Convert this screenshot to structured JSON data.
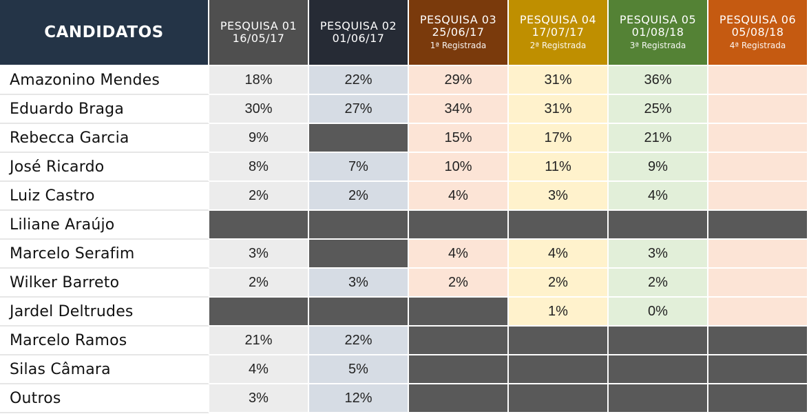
{
  "chart_data": {
    "type": "table",
    "title": "",
    "header": {
      "candidates_label": "CANDIDATOS",
      "polls": [
        {
          "name": "PESQUISA 01",
          "date": "16/05/17",
          "note": ""
        },
        {
          "name": "PESQUISA 02",
          "date": "01/06/17",
          "note": ""
        },
        {
          "name": "PESQUISA 03",
          "date": "25/06/17",
          "note": "1ª Registrada"
        },
        {
          "name": "PESQUISA 04",
          "date": "17/07/17",
          "note": "2ª Registrada"
        },
        {
          "name": "PESQUISA 05",
          "date": "01/08/18",
          "note": "3ª Registrada"
        },
        {
          "name": "PESQUISA 06",
          "date": "05/08/18",
          "note": "4ª Registrada"
        }
      ]
    },
    "rows": [
      {
        "candidate": "Amazonino Mendes",
        "values": [
          "18%",
          "22%",
          "29%",
          "31%",
          "36%",
          ""
        ]
      },
      {
        "candidate": "Eduardo Braga",
        "values": [
          "30%",
          "27%",
          "34%",
          "31%",
          "25%",
          ""
        ]
      },
      {
        "candidate": "Rebecca Garcia",
        "values": [
          "9%",
          null,
          "15%",
          "17%",
          "21%",
          ""
        ]
      },
      {
        "candidate": "José Ricardo",
        "values": [
          "8%",
          "7%",
          "10%",
          "11%",
          "9%",
          ""
        ]
      },
      {
        "candidate": "Luiz Castro",
        "values": [
          "2%",
          "2%",
          "4%",
          "3%",
          "4%",
          ""
        ]
      },
      {
        "candidate": "Liliane Araújo",
        "values": [
          null,
          null,
          null,
          null,
          null,
          null
        ]
      },
      {
        "candidate": "Marcelo Serafim",
        "values": [
          "3%",
          null,
          "4%",
          "4%",
          "3%",
          ""
        ]
      },
      {
        "candidate": "Wilker Barreto",
        "values": [
          "2%",
          "3%",
          "2%",
          "2%",
          "2%",
          ""
        ]
      },
      {
        "candidate": "Jardel Deltrudes",
        "values": [
          null,
          null,
          null,
          "1%",
          "0%",
          ""
        ]
      },
      {
        "candidate": "Marcelo Ramos",
        "values": [
          "21%",
          "22%",
          null,
          null,
          null,
          null
        ]
      },
      {
        "candidate": "Silas Câmara",
        "values": [
          "4%",
          "5%",
          null,
          null,
          null,
          null
        ]
      },
      {
        "candidate": "Outros",
        "values": [
          "3%",
          "12%",
          null,
          null,
          null,
          null
        ]
      }
    ]
  },
  "colors": {
    "candidates_header_bg": "#243447",
    "poll_header_bg": [
      "#4f4f4f",
      "#262b35",
      "#7a3a0c",
      "#bf8f00",
      "#548235",
      "#c55a11"
    ],
    "poll_cell_bg": [
      "#ececec",
      "#d6dce4",
      "#fce4d6",
      "#fff2cc",
      "#e2efd9",
      "#fce4d6"
    ],
    "empty_cell_bg": "#595959",
    "name_bg": "#ffffff",
    "text": "#222222"
  }
}
